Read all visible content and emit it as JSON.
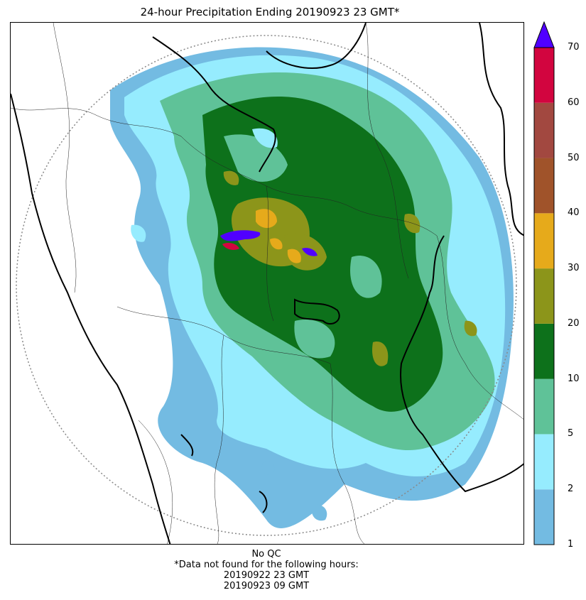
{
  "title": "24-hour Precipitation Ending 20190923 23 GMT*",
  "colorbar": {
    "ticks": [
      "1",
      "2",
      "5",
      "10",
      "20",
      "30",
      "40",
      "50",
      "60",
      "70"
    ],
    "colors": [
      "#73bbe2",
      "#96ecfe",
      "#5fc298",
      "#0d711b",
      "#8c951a",
      "#e6aa1b",
      "#a0532a",
      "#a24840",
      "#d2053f"
    ],
    "extend_color": "#5000ff"
  },
  "footer": {
    "line1": "No QC",
    "line2": "*Data not found for the following hours:",
    "line3": "20190922 23 GMT",
    "line4": "20190923 09 GMT"
  }
}
